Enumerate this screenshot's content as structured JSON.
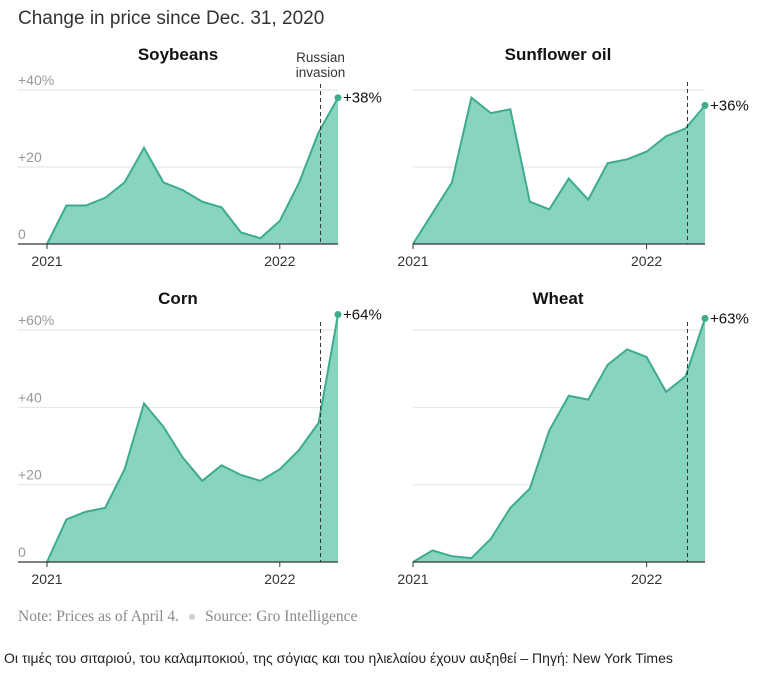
{
  "header": {
    "title": "Change in price since Dec. 31, 2020"
  },
  "footer": {
    "note": "Note: Prices as of April 4.",
    "source": "Source: Gro Intelligence"
  },
  "caption": "Οι τιμές του σιταριού, του καλαμποκιού, της σόγιας και του ηλιελαίου έχουν αυξηθεί – Πηγή: New York Times",
  "colors": {
    "area": "#88d4c0",
    "line": "#3cac8c",
    "grid": "#e2e2e2",
    "axis": "#333333"
  },
  "chart_data": [
    {
      "type": "area",
      "title": "Soybeans",
      "ylim": [
        0,
        40
      ],
      "yticks": [
        "+40%",
        "+20",
        "0"
      ],
      "ytick_values": [
        40,
        20,
        0
      ],
      "xticks": [
        "2021",
        "2022"
      ],
      "xtick_values": [
        0,
        12
      ],
      "annotation": {
        "text_lines": [
          "Russian",
          "invasion"
        ],
        "x": 14.1
      },
      "end_label": "+38%",
      "x": [
        0,
        1,
        2,
        3,
        4,
        5,
        6,
        7,
        8,
        9,
        10,
        11,
        12,
        13,
        14,
        15
      ],
      "values": [
        0,
        10,
        10,
        12,
        16,
        25,
        16,
        14,
        11,
        9.5,
        3,
        1.5,
        6,
        16,
        29,
        38
      ]
    },
    {
      "type": "area",
      "title": "Sunflower oil",
      "ylim": [
        0,
        40
      ],
      "yticks": [],
      "ytick_values": [
        40,
        20,
        0
      ],
      "xticks": [
        "2021",
        "2022"
      ],
      "xtick_values": [
        0,
        12
      ],
      "annotation": {
        "text_lines": [],
        "x": 14.1
      },
      "end_label": "+36%",
      "x": [
        0,
        1,
        2,
        3,
        4,
        5,
        6,
        7,
        8,
        9,
        10,
        11,
        12,
        13,
        14,
        15
      ],
      "values": [
        0,
        8,
        16,
        38,
        34,
        35,
        11,
        9,
        17,
        11.5,
        21,
        22,
        24,
        28,
        30,
        36
      ]
    },
    {
      "type": "area",
      "title": "Corn",
      "ylim": [
        0,
        60
      ],
      "yticks": [
        "+60%",
        "+40",
        "+20",
        "0"
      ],
      "ytick_values": [
        60,
        40,
        20,
        0
      ],
      "xticks": [
        "2021",
        "2022"
      ],
      "xtick_values": [
        0,
        12
      ],
      "annotation": {
        "text_lines": [],
        "x": 14.1
      },
      "end_label": "+64%",
      "x": [
        0,
        1,
        2,
        3,
        4,
        5,
        6,
        7,
        8,
        9,
        10,
        11,
        12,
        13,
        14,
        15
      ],
      "values": [
        0,
        11,
        13,
        14,
        24,
        41,
        35,
        27,
        21,
        25,
        22.5,
        21,
        24,
        29,
        36,
        64
      ]
    },
    {
      "type": "area",
      "title": "Wheat",
      "ylim": [
        0,
        60
      ],
      "yticks": [],
      "ytick_values": [
        60,
        40,
        20,
        0
      ],
      "xticks": [
        "2021",
        "2022"
      ],
      "xtick_values": [
        0,
        12
      ],
      "annotation": {
        "text_lines": [],
        "x": 14.1
      },
      "end_label": "+63%",
      "x": [
        0,
        1,
        2,
        3,
        4,
        5,
        6,
        7,
        8,
        9,
        10,
        11,
        12,
        13,
        14,
        15
      ],
      "values": [
        0,
        3,
        1.5,
        1,
        6,
        14,
        19,
        34,
        43,
        42,
        51,
        55,
        53,
        44,
        48,
        63
      ]
    }
  ]
}
